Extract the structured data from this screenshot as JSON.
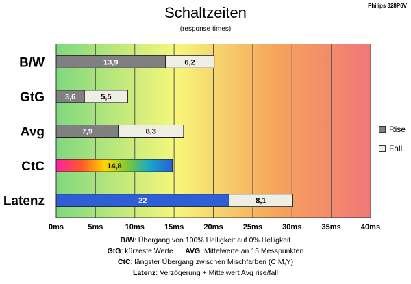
{
  "header": {
    "title": "Schaltzeiten",
    "subtitle": "(response times)",
    "model": "Philips 328P6V"
  },
  "legend": {
    "items": [
      {
        "label": "Rise",
        "color": "#808080"
      },
      {
        "label": "Fall",
        "color": "#eeeee4"
      }
    ]
  },
  "notes": {
    "line1_key": "B/W",
    "line1_text": ":  Übergang von 100% Helligkeit auf 0% Helligkeit",
    "line2_key1": "GtG",
    "line2_text1": ": kürzeste  Werte",
    "line2_key2": "AVG",
    "line2_text2": ": Mittelwerte  an 15 Messpunkten",
    "line3_key": "CtC",
    "line3_text": ": längster Übergang  zwischen Mischfarben (C,M,Y)",
    "line4_key": "Latenz",
    "line4_text": ": Verzögerung  + Mittelwert Avg rise/fall"
  },
  "chart_data": {
    "type": "bar",
    "orientation": "horizontal",
    "stacked": true,
    "categories": [
      "B/W",
      "GtG",
      "Avg",
      "CtC",
      "Latenz"
    ],
    "series": [
      {
        "name": "Rise",
        "values": [
          13.9,
          3.6,
          7.9,
          14.8,
          22
        ]
      },
      {
        "name": "Fall",
        "values": [
          6.2,
          5.5,
          8.3,
          null,
          8.1
        ]
      }
    ],
    "data_labels": [
      [
        "13,9",
        "6,2"
      ],
      [
        "3,6",
        "5,5"
      ],
      [
        "7,9",
        "8,3"
      ],
      [
        "14,8",
        ""
      ],
      [
        "22",
        "8,1"
      ]
    ],
    "bar_styles": [
      "gray",
      "gray",
      "gray",
      "rainbow",
      "blue"
    ],
    "xlim": [
      0,
      40
    ],
    "x_ticks": [
      0,
      5,
      10,
      15,
      20,
      25,
      30,
      35,
      40
    ],
    "x_tick_labels": [
      "0ms",
      "5ms",
      "10ms",
      "15ms",
      "20ms",
      "25ms",
      "30ms",
      "35ms",
      "40ms"
    ],
    "background_gradient": [
      "#7fd87f",
      "#f7f77a",
      "#f5a45c",
      "#f07878"
    ],
    "colors": {
      "rise": "#808080",
      "fall": "#eeeee4",
      "latency": "#2f5fd6",
      "grid": "#555555"
    },
    "grid": true,
    "legend_position": "right"
  }
}
